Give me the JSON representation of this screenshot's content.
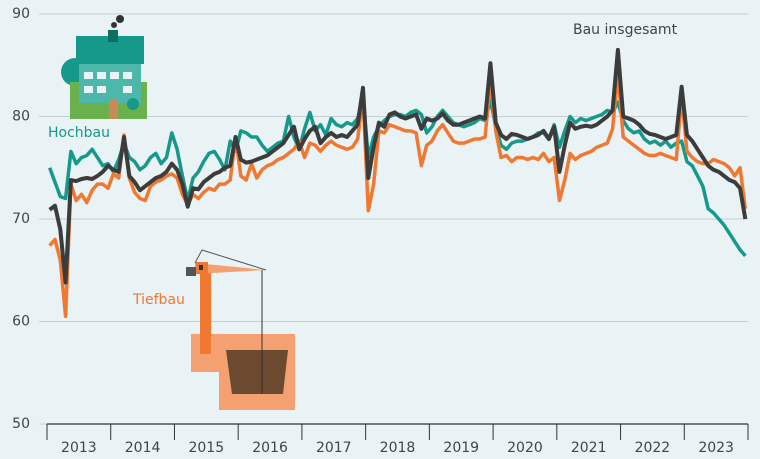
{
  "chart_data": {
    "type": "line",
    "categories": [
      null,
      null,
      null,
      null,
      null,
      "2013",
      null,
      null,
      null,
      null,
      null,
      null,
      null,
      null,
      null,
      null,
      null,
      "2014",
      null,
      null,
      null,
      null,
      null,
      null,
      null,
      null,
      null,
      null,
      null,
      "2015",
      null,
      null,
      null,
      null,
      null,
      null,
      null,
      null,
      null,
      null,
      null,
      "2016",
      null,
      null,
      null,
      null,
      null,
      null,
      null,
      null,
      null,
      null,
      null,
      "2017",
      null,
      null,
      null,
      null,
      null,
      null,
      null,
      null,
      null,
      null,
      null,
      "2018",
      null,
      null,
      null,
      null,
      null,
      null,
      null,
      null,
      null,
      null,
      null,
      "2019",
      null,
      null,
      null,
      null,
      null,
      null,
      null,
      null,
      null,
      null,
      null,
      "2020",
      null,
      null,
      null,
      null,
      null,
      null,
      null,
      null,
      null,
      null,
      null,
      "2021",
      null,
      null,
      null,
      null,
      null,
      null,
      null,
      null,
      null,
      null,
      null,
      "2022",
      null,
      null,
      null,
      null,
      null,
      null,
      null,
      null,
      null,
      null,
      null,
      "2023",
      null,
      null,
      null,
      null,
      null,
      null
    ],
    "series": [
      {
        "name": "Hochbau",
        "color": "#16998a",
        "values": [
          75.0,
          73.6,
          72.2,
          72.0,
          76.6,
          75.4,
          76.0,
          76.2,
          76.8,
          76.0,
          75.2,
          75.4,
          74.6,
          75.8,
          77.4,
          76.0,
          75.6,
          74.8,
          75.2,
          76.0,
          76.4,
          75.4,
          76.0,
          78.4,
          76.8,
          74.2,
          71.8,
          74.0,
          74.6,
          75.6,
          76.4,
          76.6,
          75.8,
          74.8,
          77.6,
          76.6,
          78.6,
          78.4,
          78.0,
          78.0,
          77.2,
          76.6,
          77.0,
          77.4,
          77.6,
          80.0,
          78.0,
          76.8,
          78.8,
          80.4,
          78.6,
          79.2,
          78.2,
          79.8,
          79.2,
          79.0,
          79.4,
          79.2,
          79.8,
          82.0,
          76.0,
          78.0,
          79.0,
          79.6,
          80.0,
          80.2,
          80.2,
          80.0,
          80.4,
          80.6,
          80.2,
          78.4,
          79.0,
          80.0,
          80.6,
          80.0,
          79.4,
          79.2,
          79.0,
          79.2,
          79.4,
          79.8,
          79.6,
          81.6,
          79.0,
          77.2,
          76.8,
          77.4,
          77.6,
          77.6,
          77.8,
          78.0,
          78.4,
          78.4,
          77.8,
          79.2,
          77.0,
          78.6,
          80.0,
          79.4,
          79.8,
          79.6,
          79.8,
          80.0,
          80.2,
          80.6,
          80.4,
          81.4,
          79.6,
          78.8,
          78.4,
          78.6,
          77.8,
          77.4,
          77.6,
          77.2,
          77.6,
          77.0,
          77.4,
          77.6,
          75.6,
          75.2,
          74.2,
          73.2,
          71.0,
          70.6,
          70.0,
          69.4,
          68.6,
          67.8,
          67.0,
          66.4
        ]
      },
      {
        "name": "Tiefbau",
        "color": "#f07830",
        "values": [
          67.4,
          68.0,
          66.0,
          60.5,
          73.4,
          71.8,
          72.4,
          71.6,
          72.8,
          73.4,
          73.4,
          73.0,
          74.4,
          74.0,
          78.2,
          74.0,
          72.6,
          72.0,
          71.8,
          73.2,
          73.6,
          73.8,
          74.2,
          74.4,
          74.0,
          72.4,
          71.4,
          72.4,
          72.0,
          72.6,
          73.0,
          72.8,
          73.4,
          73.4,
          73.8,
          78.0,
          74.2,
          73.8,
          75.4,
          74.0,
          74.8,
          75.2,
          75.4,
          75.8,
          76.0,
          76.4,
          76.8,
          77.6,
          76.0,
          77.4,
          77.2,
          76.6,
          77.2,
          77.6,
          77.2,
          77.0,
          76.8,
          77.0,
          77.8,
          82.0,
          70.8,
          73.4,
          78.6,
          78.4,
          79.2,
          79.0,
          78.8,
          78.6,
          78.6,
          78.4,
          75.2,
          77.2,
          77.6,
          78.6,
          79.2,
          78.4,
          77.6,
          77.4,
          77.4,
          77.6,
          77.8,
          77.8,
          78.0,
          83.6,
          78.6,
          76.0,
          76.2,
          75.6,
          76.0,
          76.0,
          75.8,
          76.0,
          75.8,
          76.4,
          75.6,
          76.0,
          71.8,
          73.8,
          76.4,
          75.8,
          76.2,
          76.4,
          76.6,
          77.0,
          77.2,
          77.4,
          78.8,
          84.2,
          78.0,
          77.6,
          77.2,
          76.8,
          76.4,
          76.2,
          76.2,
          76.4,
          76.2,
          76.0,
          75.8,
          82.0,
          76.6,
          76.0,
          75.6,
          75.4,
          75.4,
          75.8,
          75.6,
          75.4,
          75.0,
          74.2,
          75.0,
          71.0
        ]
      },
      {
        "name": "Bau insgesamt",
        "color": "#3c3c3c",
        "values": [
          70.9,
          71.3,
          69.0,
          63.8,
          73.8,
          73.7,
          73.9,
          74.0,
          73.9,
          74.2,
          74.6,
          75.2,
          74.8,
          74.6,
          78.0,
          74.2,
          73.6,
          72.8,
          73.2,
          73.6,
          74.0,
          74.2,
          74.6,
          75.4,
          74.8,
          73.4,
          71.2,
          73.0,
          72.9,
          73.6,
          74.0,
          74.4,
          74.6,
          75.0,
          75.2,
          78.0,
          75.8,
          75.5,
          75.6,
          75.8,
          76.0,
          76.2,
          76.6,
          77.0,
          77.4,
          78.2,
          79.0,
          76.8,
          77.8,
          78.6,
          79.0,
          77.4,
          78.0,
          78.4,
          78.0,
          78.2,
          78.0,
          78.6,
          79.2,
          82.8,
          74.0,
          77.0,
          79.4,
          79.0,
          80.2,
          80.4,
          80.0,
          79.8,
          80.0,
          80.2,
          78.8,
          79.8,
          79.6,
          79.8,
          80.3,
          79.6,
          79.2,
          79.2,
          79.4,
          79.6,
          79.8,
          80.0,
          79.8,
          85.2,
          79.4,
          78.2,
          77.8,
          78.3,
          78.2,
          78.0,
          77.8,
          78.0,
          78.2,
          78.6,
          77.8,
          79.0,
          74.6,
          77.2,
          79.4,
          78.8,
          79.0,
          79.1,
          79.0,
          79.2,
          79.6,
          80.0,
          80.6,
          86.5,
          80.0,
          79.8,
          79.6,
          79.2,
          78.6,
          78.3,
          78.2,
          78.0,
          77.8,
          78.0,
          78.2,
          82.9,
          78.2,
          77.6,
          76.8,
          76.0,
          75.2,
          74.8,
          74.6,
          74.2,
          73.8,
          73.6,
          73.0,
          70.0
        ]
      }
    ],
    "ylim": [
      50,
      90
    ],
    "yticks": [
      50,
      60,
      70,
      80,
      90
    ],
    "grid": true
  }
}
